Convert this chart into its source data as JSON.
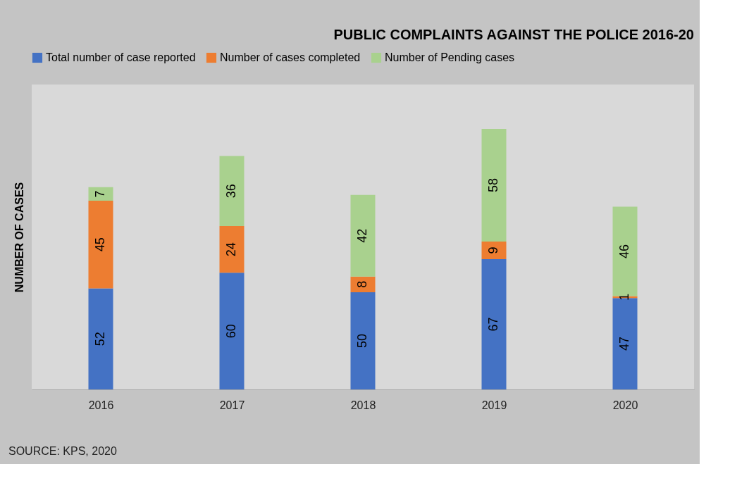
{
  "chart_data": {
    "type": "bar",
    "title": "PUBLIC COMPLAINTS AGAINST THE POLICE 2016-20",
    "ylabel": "NUMBER OF CASES",
    "categories": [
      "2016",
      "2017",
      "2018",
      "2019",
      "2020"
    ],
    "stacked": true,
    "data_labels": true,
    "legend": "top",
    "grid": false,
    "series": [
      {
        "name": "Total number of case reported",
        "color": "#4472c4",
        "values": [
          52,
          60,
          50,
          67,
          47
        ]
      },
      {
        "name": "Number of cases completed",
        "color": "#ed7d31",
        "values": [
          45,
          24,
          8,
          9,
          1
        ]
      },
      {
        "name": "Number of Pending cases",
        "color": "#a9d18e",
        "values": [
          7,
          36,
          42,
          58,
          46
        ]
      }
    ],
    "annotations": [
      "SOURCE: KPS, 2020"
    ]
  }
}
